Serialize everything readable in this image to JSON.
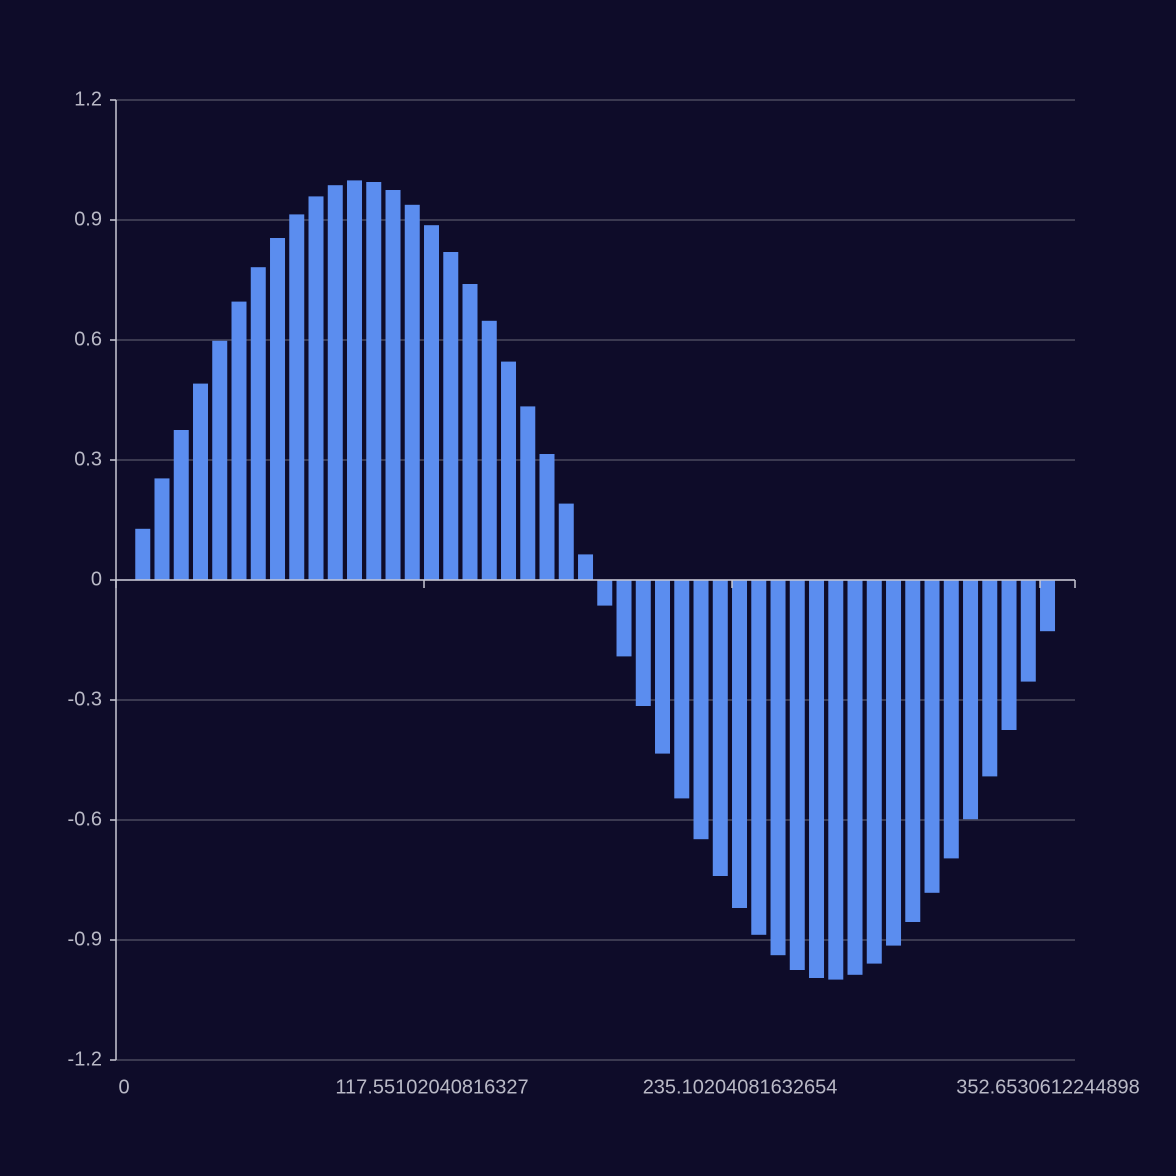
{
  "chart_data": {
    "type": "bar",
    "x": [
      7.35,
      14.69,
      22.04,
      29.39,
      36.73,
      44.08,
      51.43,
      58.78,
      66.12,
      73.47,
      80.82,
      88.16,
      95.51,
      102.86,
      110.2,
      117.55,
      124.9,
      132.24,
      139.59,
      146.94,
      154.29,
      161.63,
      168.98,
      176.33,
      183.67,
      191.02,
      198.37,
      205.71,
      213.06,
      220.41,
      227.76,
      235.1,
      242.45,
      249.8,
      257.14,
      264.49,
      271.84,
      279.18,
      286.53,
      293.88,
      301.22,
      308.57,
      315.92,
      323.27,
      330.61,
      337.96,
      345.31,
      352.65
    ],
    "values": [
      0.128,
      0.254,
      0.375,
      0.491,
      0.598,
      0.696,
      0.782,
      0.855,
      0.914,
      0.959,
      0.987,
      0.999,
      0.995,
      0.975,
      0.938,
      0.887,
      0.82,
      0.74,
      0.648,
      0.546,
      0.434,
      0.315,
      0.191,
      0.064,
      -0.064,
      -0.191,
      -0.315,
      -0.434,
      -0.546,
      -0.648,
      -0.74,
      -0.82,
      -0.887,
      -0.938,
      -0.975,
      -0.995,
      -0.999,
      -0.987,
      -0.959,
      -0.914,
      -0.855,
      -0.782,
      -0.696,
      -0.598,
      -0.491,
      -0.375,
      -0.254,
      -0.128
    ],
    "color": "#5b8def",
    "xlim": [
      0,
      366
    ],
    "xticks": [
      0,
      117.55102040816327,
      235.10204081632654,
      352.6530612244898
    ],
    "ylim": [
      -1.2,
      1.2
    ],
    "yticks": [
      -1.2,
      -0.9,
      -0.6,
      -0.3,
      0,
      0.3,
      0.6,
      0.9,
      1.2
    ],
    "grid": true
  }
}
